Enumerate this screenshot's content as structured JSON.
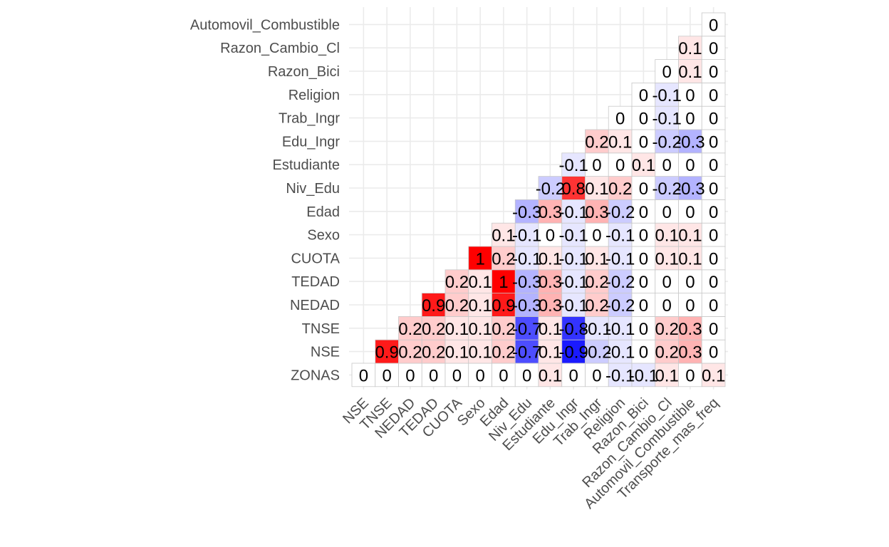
{
  "chart_data": {
    "type": "heatmap",
    "title": "",
    "xlabel": "",
    "ylabel": "",
    "variables": [
      "ZONAS",
      "NSE",
      "TNSE",
      "NEDAD",
      "TEDAD",
      "CUOTA",
      "Sexo",
      "Edad",
      "Niv_Edu",
      "Estudiante",
      "Edu_Ingr",
      "Trab_Ingr",
      "Religion",
      "Razon_Bici",
      "Razon_Cambio_Cl",
      "Automovil_Combustible",
      "Transporte_mas_freq"
    ],
    "x_labels": [
      "NSE",
      "TNSE",
      "NEDAD",
      "TEDAD",
      "CUOTA",
      "Sexo",
      "Edad",
      "Niv_Edu",
      "Estudiante",
      "Edu_Ingr",
      "Trab_Ingr",
      "Religion",
      "Razon_Bici",
      "Razon_Cambio_Cl",
      "Automovil_Combustible",
      "Transporte_mas_freq"
    ],
    "y_labels": [
      "ZONAS",
      "NSE",
      "TNSE",
      "NEDAD",
      "TEDAD",
      "CUOTA",
      "Sexo",
      "Edad",
      "Niv_Edu",
      "Estudiante",
      "Edu_Ingr",
      "Trab_Ingr",
      "Religion",
      "Razon_Bici",
      "Razon_Cambio_Cl",
      "Automovil_Combustible"
    ],
    "value_range": [
      -1,
      1
    ],
    "colors": {
      "low": "#0000ff",
      "mid": "#ffffff",
      "high": "#ff0000"
    },
    "grid": true,
    "legend": "none",
    "rows": [
      {
        "y": "ZONAS",
        "values": [
          0,
          0,
          0,
          0,
          0,
          0,
          0,
          0,
          0.1,
          0,
          0,
          -0.1,
          -0.1,
          0.1,
          0,
          0.1
        ]
      },
      {
        "y": "NSE",
        "values": [
          0.9,
          0.2,
          0.2,
          0.1,
          0.1,
          0.2,
          -0.7,
          0.1,
          -0.9,
          -0.2,
          -0.1,
          0,
          0.2,
          0.3,
          0
        ]
      },
      {
        "y": "TNSE",
        "values": [
          0.2,
          0.2,
          0.1,
          0.1,
          0.2,
          -0.7,
          0.1,
          -0.8,
          -0.1,
          -0.1,
          0,
          0.2,
          0.3,
          0
        ]
      },
      {
        "y": "NEDAD",
        "values": [
          0.9,
          0.2,
          0.1,
          0.9,
          -0.3,
          0.3,
          -0.1,
          0.2,
          -0.2,
          0,
          0,
          0,
          0
        ]
      },
      {
        "y": "TEDAD",
        "values": [
          0.2,
          0.1,
          1,
          -0.3,
          0.3,
          -0.1,
          0.2,
          -0.2,
          0,
          0,
          0,
          0
        ]
      },
      {
        "y": "CUOTA",
        "values": [
          1,
          0.2,
          -0.1,
          0.1,
          -0.1,
          0.1,
          -0.1,
          0,
          0.1,
          0.1,
          0
        ]
      },
      {
        "y": "Sexo",
        "values": [
          0.1,
          -0.1,
          0,
          -0.1,
          0,
          -0.1,
          0,
          0.1,
          0.1,
          0
        ]
      },
      {
        "y": "Edad",
        "values": [
          -0.3,
          0.3,
          -0.1,
          0.3,
          -0.2,
          0,
          0,
          0,
          0
        ]
      },
      {
        "y": "Niv_Edu",
        "values": [
          -0.2,
          0.8,
          0.1,
          0.2,
          0,
          -0.2,
          -0.3,
          0
        ]
      },
      {
        "y": "Estudiante",
        "values": [
          -0.1,
          0,
          0,
          0.1,
          0,
          0,
          0
        ]
      },
      {
        "y": "Edu_Ingr",
        "values": [
          0.2,
          0.1,
          0,
          -0.2,
          -0.3,
          0
        ]
      },
      {
        "y": "Trab_Ingr",
        "values": [
          0,
          0,
          -0.1,
          0,
          0
        ]
      },
      {
        "y": "Religion",
        "values": [
          0,
          -0.1,
          0,
          0
        ]
      },
      {
        "y": "Razon_Bici",
        "values": [
          0,
          0.1,
          0
        ]
      },
      {
        "y": "Razon_Cambio_Cl",
        "values": [
          0.1,
          0
        ]
      },
      {
        "y": "Automovil_Combustible",
        "values": [
          0
        ]
      }
    ]
  }
}
